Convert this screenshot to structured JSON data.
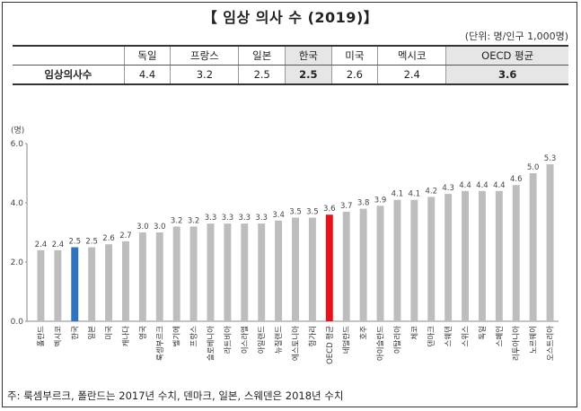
{
  "title": "【 임상 의사 수 (2019)】",
  "unit_note": "(단위: 명/인구 1,000명)",
  "table": {
    "row_header": "임상의사수",
    "columns": [
      "독일",
      "프랑스",
      "일본",
      "한국",
      "미국",
      "멕시코",
      "OECD 평균"
    ],
    "values": [
      "4.4",
      "3.2",
      "2.5",
      "2.5",
      "2.6",
      "2.4",
      "3.6"
    ],
    "highlight_columns": [
      "한국",
      "OECD 평균"
    ]
  },
  "footnote": "주: 룩셈부르크, 폴란드는 2017년 수치, 덴마크, 일본, 스웨덴은 2018년 수치",
  "colors": {
    "bar": "#bdbdbd",
    "korea": "#2e75c0",
    "oecd": "#e8141b"
  },
  "chart_data": {
    "type": "bar",
    "title": "",
    "xlabel": "",
    "ylabel": "(명)",
    "ylim": [
      0,
      6
    ],
    "yticks": [
      "0.0",
      "2.0",
      "4.0",
      "6.0"
    ],
    "grid": false,
    "categories": [
      "폴란드",
      "멕시코",
      "한국",
      "일본",
      "미국",
      "캐나다",
      "영국",
      "룩셈부르크",
      "벨기에",
      "프랑스",
      "슬로베니아",
      "라트비아",
      "이스라엘",
      "아일랜드",
      "뉴질랜드",
      "에스토니아",
      "헝가리",
      "OECD 평균",
      "네덜란드",
      "호주",
      "아이슬란드",
      "이탈리아",
      "체코",
      "덴마크",
      "스웨덴",
      "스위스",
      "독일",
      "스페인",
      "리투아니아",
      "노르웨이",
      "오스트리아"
    ],
    "values": [
      2.4,
      2.4,
      2.5,
      2.5,
      2.6,
      2.7,
      3.0,
      3.0,
      3.2,
      3.2,
      3.3,
      3.3,
      3.3,
      3.3,
      3.4,
      3.5,
      3.5,
      3.6,
      3.7,
      3.8,
      3.9,
      4.1,
      4.1,
      4.2,
      4.3,
      4.4,
      4.4,
      4.4,
      4.6,
      5.0,
      5.3
    ],
    "value_labels": [
      "2.4",
      "2.4",
      "2.5",
      "2.5",
      "2.6",
      "2.7",
      "3.0",
      "3.0",
      "3.2",
      "3.2",
      "3.3",
      "3.3",
      "3.3",
      "3.3",
      "3.4",
      "3.5",
      "3.5",
      "3.6",
      "3.7",
      "3.8",
      "3.9",
      "4.1",
      "4.1",
      "4.2",
      "4.3",
      "4.4",
      "4.4",
      "4.4",
      "4.6",
      "5.0",
      "5.3"
    ],
    "highlight": {
      "한국": "korea",
      "OECD 평균": "oecd"
    }
  }
}
